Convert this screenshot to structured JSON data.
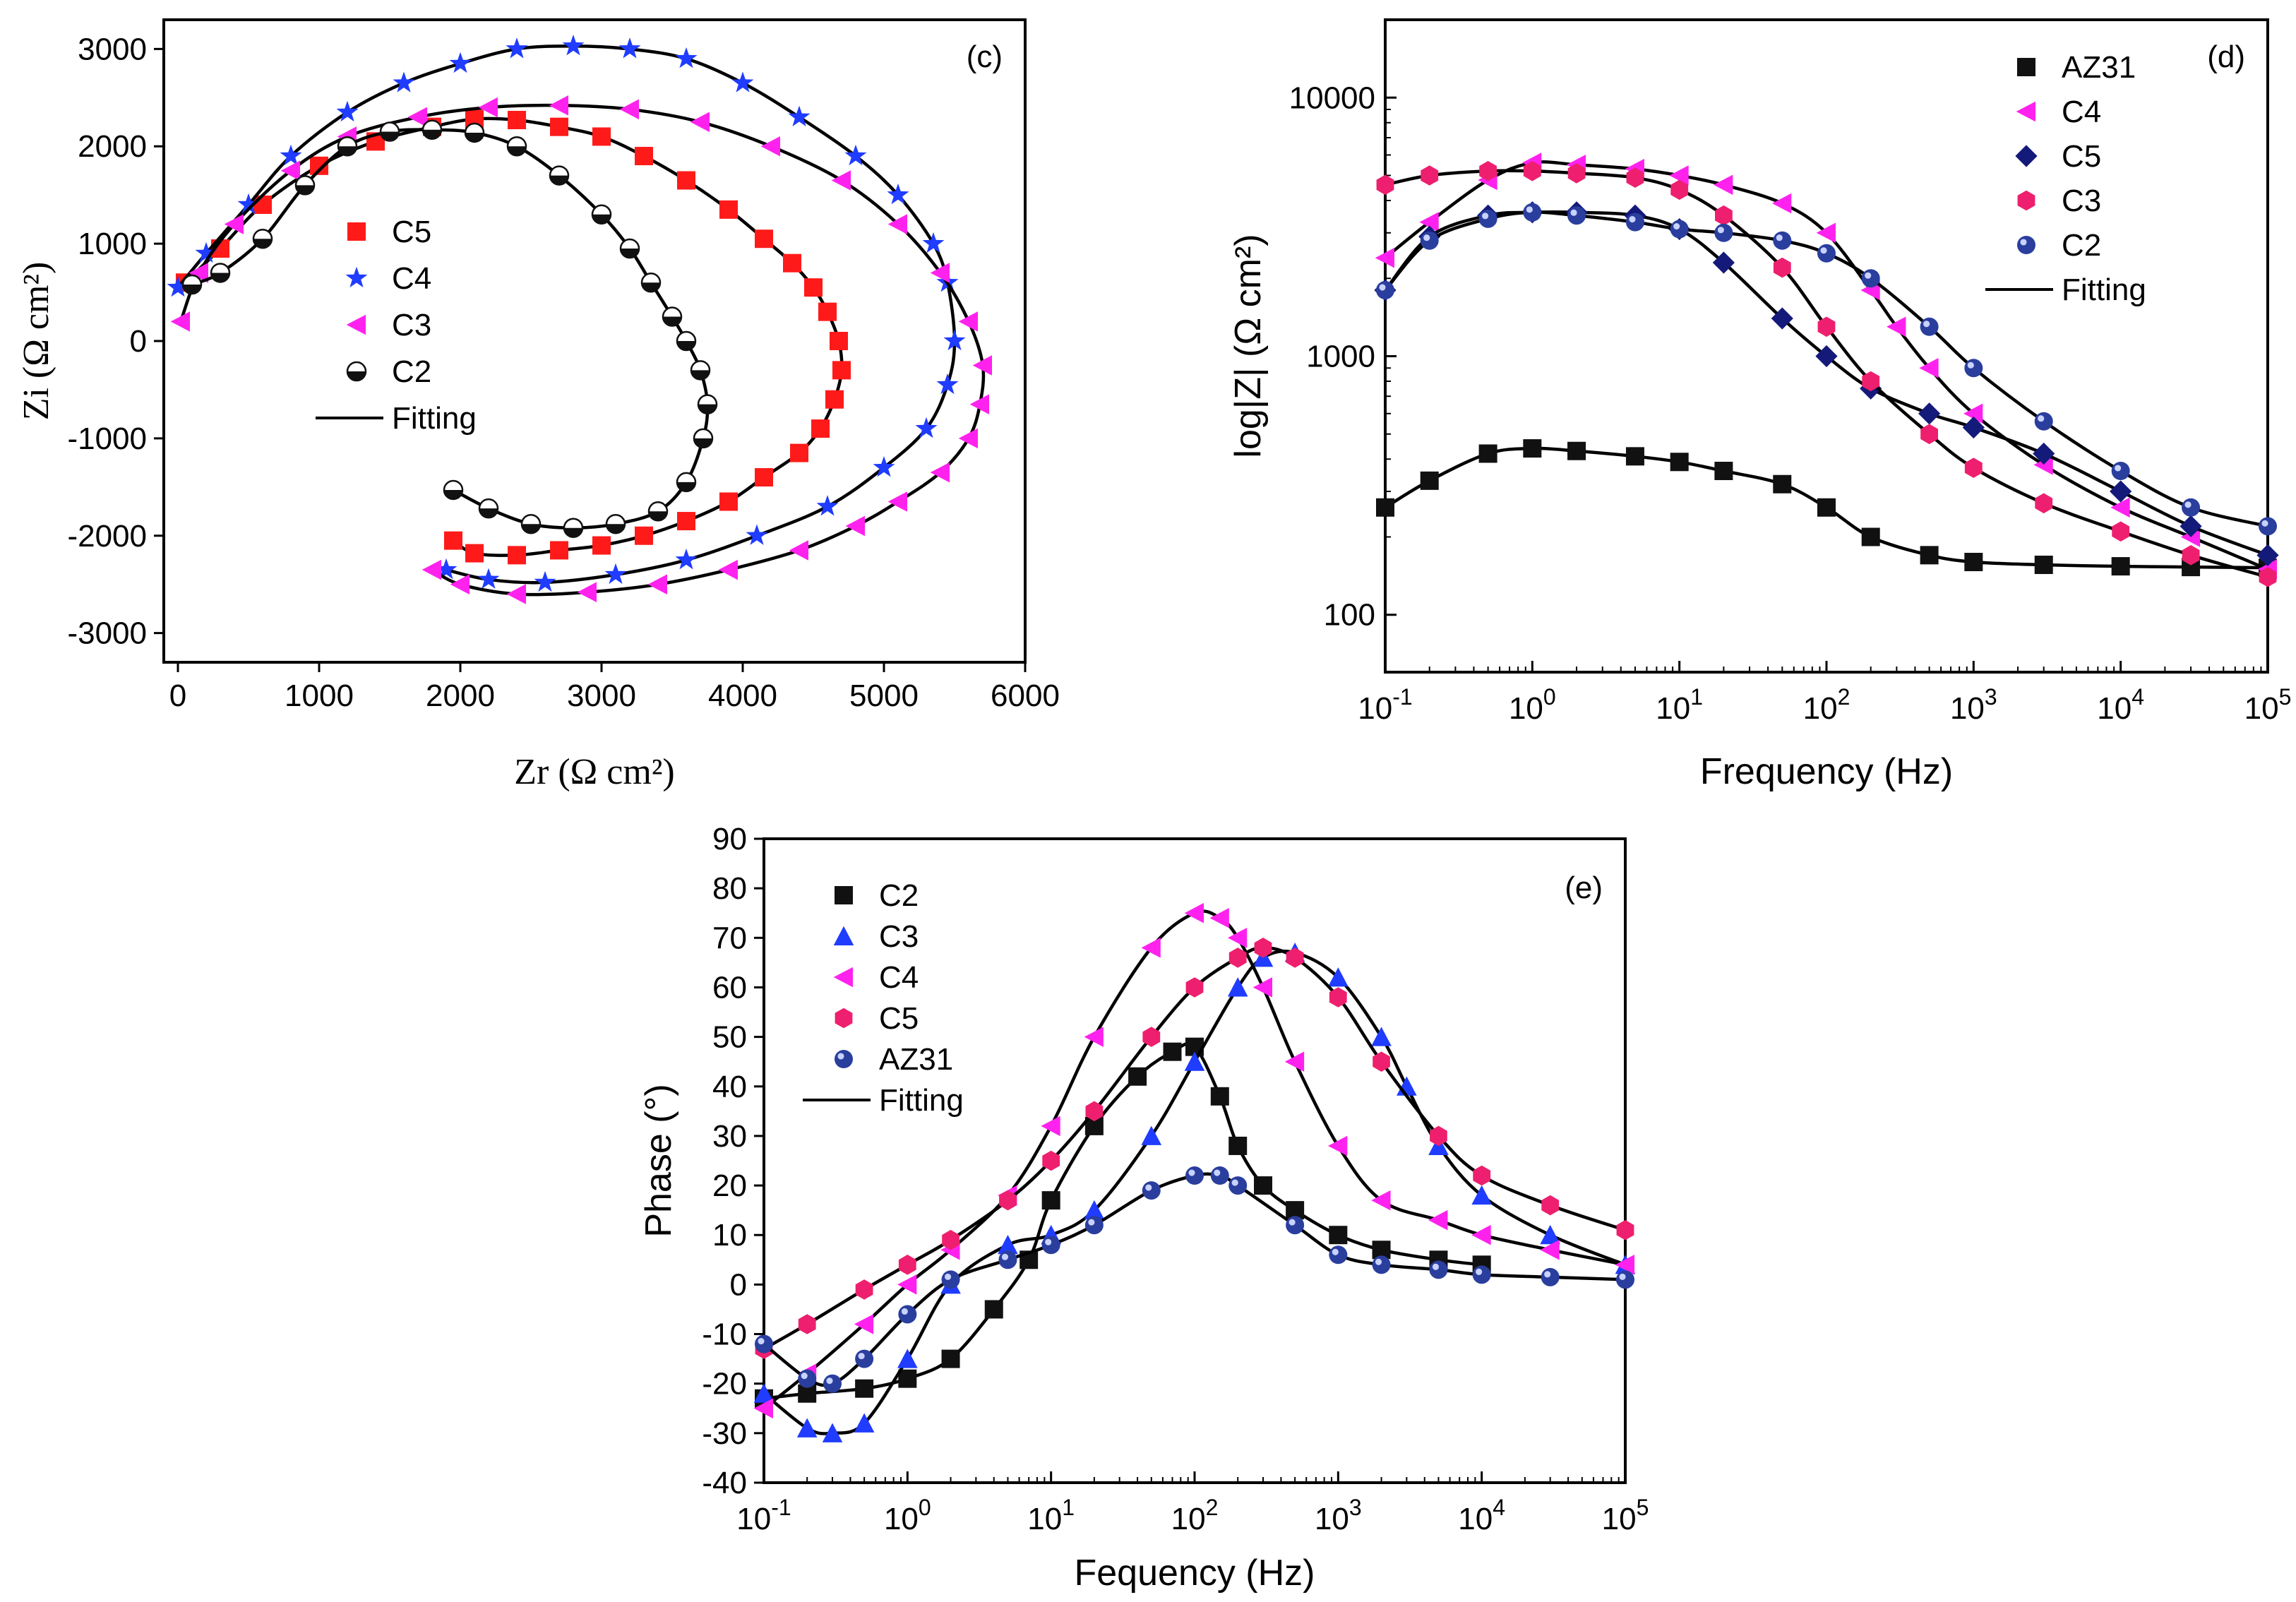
{
  "colors": {
    "black": "#111111",
    "red": "#ff1a1a",
    "blue": "#1f3cff",
    "magenta": "#ff22ee",
    "navy": "#141a7a",
    "pink": "#ee1f6e",
    "ball": "#2a3e9e",
    "fit": "#000000"
  },
  "chart_data": [
    {
      "id": "c",
      "type": "scatter",
      "panel_label": "(c)",
      "xlabel": "Zr (Ω  cm²)",
      "ylabel": "Zi (Ω  cm²)",
      "xlim": [
        -100,
        6000
      ],
      "ylim": [
        -3300,
        3300
      ],
      "xticks": [
        0,
        1000,
        2000,
        3000,
        4000,
        5000,
        6000
      ],
      "yticks": [
        -3000,
        -2000,
        -1000,
        0,
        1000,
        2000,
        3000
      ],
      "fit_label": "Fitting",
      "series": [
        {
          "name": "C5",
          "marker": "square",
          "color": "red",
          "x": [
            50,
            300,
            600,
            1000,
            1400,
            1800,
            2100,
            2400,
            2700,
            3000,
            3300,
            3600,
            3900,
            4150,
            4350,
            4500,
            4600,
            4680,
            4700,
            4650,
            4550,
            4400,
            4150,
            3900,
            3600,
            3300,
            3000,
            2700,
            2400,
            2100,
            1950
          ],
          "y": [
            600,
            950,
            1400,
            1800,
            2050,
            2200,
            2280,
            2270,
            2200,
            2100,
            1900,
            1650,
            1350,
            1050,
            800,
            550,
            300,
            0,
            -300,
            -600,
            -900,
            -1150,
            -1400,
            -1650,
            -1850,
            -2000,
            -2100,
            -2150,
            -2200,
            -2180,
            -2050
          ]
        },
        {
          "name": "C4",
          "marker": "star",
          "color": "blue",
          "x": [
            0,
            200,
            500,
            800,
            1200,
            1600,
            2000,
            2400,
            2800,
            3200,
            3600,
            4000,
            4400,
            4800,
            5100,
            5350,
            5450,
            5500,
            5450,
            5300,
            5000,
            4600,
            4100,
            3600,
            3100,
            2600,
            2200,
            1900
          ],
          "y": [
            550,
            900,
            1400,
            1900,
            2350,
            2650,
            2850,
            3000,
            3030,
            3000,
            2900,
            2650,
            2300,
            1900,
            1500,
            1000,
            600,
            0,
            -450,
            -900,
            -1300,
            -1700,
            -2000,
            -2250,
            -2400,
            -2480,
            -2450,
            -2350
          ]
        },
        {
          "name": "C3",
          "marker": "triangle-left",
          "color": "magenta",
          "x": [
            20,
            150,
            400,
            800,
            1200,
            1700,
            2200,
            2700,
            3200,
            3700,
            4200,
            4700,
            5100,
            5400,
            5600,
            5700,
            5680,
            5600,
            5400,
            5100,
            4800,
            4400,
            3900,
            3400,
            2900,
            2400,
            2000,
            1800
          ],
          "y": [
            200,
            700,
            1200,
            1750,
            2100,
            2300,
            2400,
            2420,
            2380,
            2250,
            2000,
            1650,
            1200,
            700,
            200,
            -250,
            -650,
            -1000,
            -1350,
            -1650,
            -1900,
            -2150,
            -2350,
            -2500,
            -2580,
            -2600,
            -2500,
            -2350
          ]
        },
        {
          "name": "C2",
          "marker": "ball-half",
          "color": "black",
          "x": [
            100,
            300,
            600,
            900,
            1200,
            1500,
            1800,
            2100,
            2400,
            2700,
            3000,
            3200,
            3350,
            3500,
            3600,
            3700,
            3750,
            3720,
            3600,
            3400,
            3100,
            2800,
            2500,
            2200,
            1950
          ],
          "y": [
            580,
            700,
            1050,
            1600,
            2000,
            2150,
            2170,
            2140,
            2000,
            1700,
            1300,
            950,
            600,
            250,
            0,
            -300,
            -650,
            -1000,
            -1450,
            -1750,
            -1880,
            -1920,
            -1880,
            -1720,
            -1530
          ]
        }
      ]
    },
    {
      "id": "d",
      "type": "scatter",
      "panel_label": "(d)",
      "xlabel": "Frequency (Hz)",
      "ylabel": "log|Z| (Ω  cm²)",
      "x_scale": "log",
      "y_scale": "log",
      "xlim": [
        0.1,
        100000
      ],
      "ylim": [
        60,
        20000
      ],
      "xtick_exponents": [
        -1,
        0,
        1,
        2,
        3,
        4,
        5
      ],
      "yticks": [
        100,
        1000,
        10000
      ],
      "fit_label": "Fitting",
      "series": [
        {
          "name": "AZ31",
          "marker": "square",
          "color": "black",
          "x": [
            0.1,
            0.2,
            0.5,
            1,
            2,
            5,
            10,
            20,
            50,
            100,
            200,
            500,
            1000,
            3000,
            10000,
            30000,
            100000
          ],
          "y": [
            260,
            330,
            420,
            440,
            430,
            410,
            390,
            360,
            320,
            260,
            200,
            170,
            160,
            156,
            154,
            153,
            152
          ]
        },
        {
          "name": "C4",
          "marker": "triangle-left",
          "color": "magenta",
          "x": [
            0.1,
            0.2,
            0.5,
            1,
            2,
            5,
            10,
            20,
            50,
            100,
            200,
            300,
            500,
            1000,
            3000,
            10000,
            30000,
            100000
          ],
          "y": [
            2400,
            3300,
            4800,
            5600,
            5500,
            5300,
            5000,
            4600,
            3900,
            3000,
            1800,
            1300,
            900,
            600,
            380,
            260,
            200,
            150
          ]
        },
        {
          "name": "C5",
          "marker": "diamond",
          "color": "navy",
          "x": [
            0.1,
            0.2,
            0.5,
            1,
            2,
            5,
            10,
            20,
            50,
            100,
            200,
            500,
            1000,
            3000,
            10000,
            30000,
            100000
          ],
          "y": [
            1800,
            2900,
            3500,
            3600,
            3600,
            3500,
            3100,
            2300,
            1400,
            1000,
            750,
            600,
            530,
            420,
            300,
            220,
            170
          ]
        },
        {
          "name": "C3",
          "marker": "hexagon",
          "color": "pink",
          "x": [
            0.1,
            0.2,
            0.5,
            1,
            2,
            5,
            10,
            20,
            50,
            100,
            200,
            500,
            1000,
            3000,
            10000,
            30000,
            100000
          ],
          "y": [
            4600,
            5000,
            5200,
            5200,
            5100,
            4900,
            4400,
            3500,
            2200,
            1300,
            800,
            500,
            370,
            270,
            210,
            170,
            140
          ]
        },
        {
          "name": "C2",
          "marker": "ball",
          "color": "ball",
          "x": [
            0.1,
            0.2,
            0.5,
            1,
            2,
            5,
            10,
            20,
            50,
            100,
            200,
            500,
            1000,
            3000,
            10000,
            30000,
            100000
          ],
          "y": [
            1800,
            2800,
            3400,
            3600,
            3500,
            3300,
            3100,
            3000,
            2800,
            2500,
            2000,
            1300,
            900,
            560,
            360,
            260,
            220
          ]
        }
      ]
    },
    {
      "id": "e",
      "type": "scatter",
      "panel_label": "(e)",
      "xlabel": "Fequency (Hz)",
      "ylabel": "Phase (°)",
      "x_scale": "log",
      "xlim": [
        0.1,
        100000
      ],
      "ylim": [
        -40,
        90
      ],
      "xtick_exponents": [
        -1,
        0,
        1,
        2,
        3,
        4,
        5
      ],
      "yticks": [
        -40,
        -30,
        -20,
        -10,
        0,
        10,
        20,
        30,
        40,
        50,
        60,
        70,
        80,
        90
      ],
      "fit_label": "Fitting",
      "series": [
        {
          "name": "C2",
          "marker": "square",
          "color": "black",
          "x": [
            0.1,
            0.2,
            0.5,
            1,
            2,
            4,
            7,
            10,
            20,
            40,
            70,
            100,
            150,
            200,
            300,
            500,
            1000,
            2000,
            5000,
            10000
          ],
          "y": [
            -23,
            -22,
            -21,
            -19,
            -15,
            -5,
            5,
            17,
            32,
            42,
            47,
            48,
            38,
            28,
            20,
            15,
            10,
            7,
            5,
            4
          ]
        },
        {
          "name": "C3",
          "marker": "triangle-up",
          "color": "blue",
          "x": [
            0.1,
            0.2,
            0.3,
            0.5,
            1,
            2,
            5,
            10,
            20,
            50,
            100,
            200,
            300,
            500,
            1000,
            2000,
            3000,
            5000,
            10000,
            30000,
            100000
          ],
          "y": [
            -22,
            -29,
            -30,
            -28,
            -15,
            0,
            8,
            10,
            15,
            30,
            45,
            60,
            66,
            67,
            62,
            50,
            40,
            28,
            18,
            10,
            4
          ]
        },
        {
          "name": "C4",
          "marker": "triangle-left",
          "color": "magenta",
          "x": [
            0.1,
            0.2,
            0.5,
            1,
            2,
            5,
            10,
            20,
            50,
            100,
            150,
            200,
            300,
            500,
            1000,
            2000,
            5000,
            10000,
            30000,
            100000
          ],
          "y": [
            -25,
            -18,
            -8,
            0,
            7,
            18,
            32,
            50,
            68,
            75,
            74,
            70,
            60,
            45,
            28,
            17,
            13,
            10,
            7,
            4
          ]
        },
        {
          "name": "C5",
          "marker": "hexagon",
          "color": "pink",
          "x": [
            0.1,
            0.2,
            0.5,
            1,
            2,
            5,
            10,
            20,
            50,
            100,
            200,
            300,
            500,
            1000,
            2000,
            5000,
            10000,
            30000,
            100000
          ],
          "y": [
            -13,
            -8,
            -1,
            4,
            9,
            17,
            25,
            35,
            50,
            60,
            66,
            68,
            66,
            58,
            45,
            30,
            22,
            16,
            11
          ]
        },
        {
          "name": "AZ31",
          "marker": "ball",
          "color": "ball",
          "x": [
            0.1,
            0.2,
            0.3,
            0.5,
            1,
            2,
            5,
            10,
            20,
            50,
            100,
            150,
            200,
            500,
            1000,
            2000,
            5000,
            10000,
            30000,
            100000
          ],
          "y": [
            -12,
            -19,
            -20,
            -15,
            -6,
            1,
            5,
            8,
            12,
            19,
            22,
            22,
            20,
            12,
            6,
            4,
            3,
            2,
            1.5,
            1
          ]
        }
      ]
    }
  ]
}
